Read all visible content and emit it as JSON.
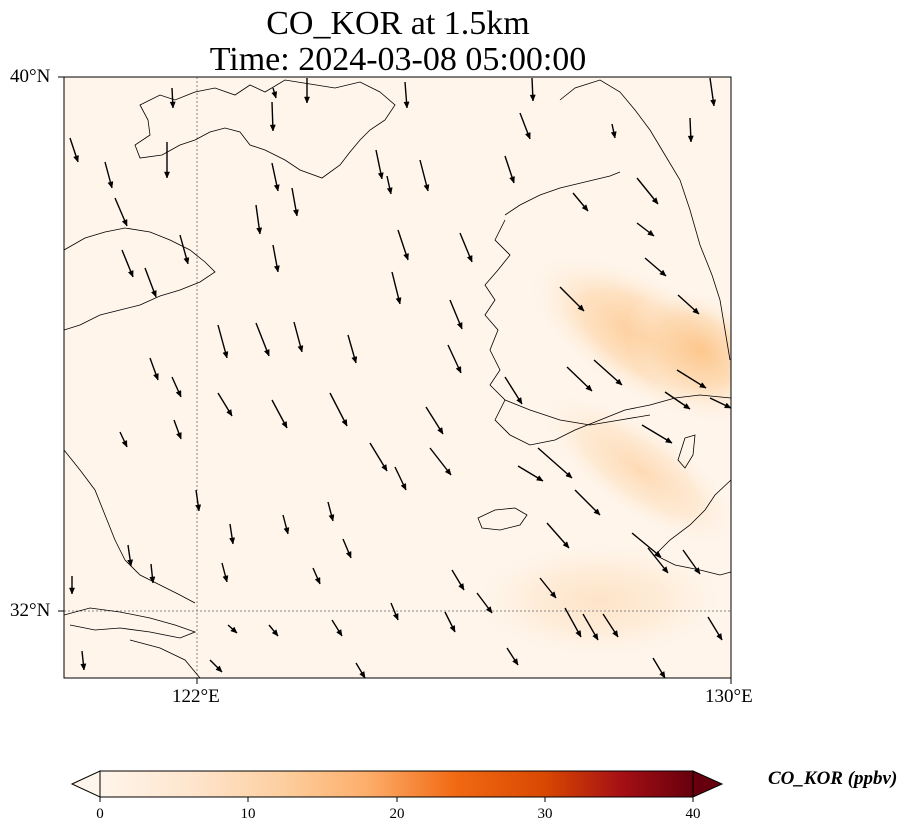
{
  "title": {
    "line1": "CO_KOR at 1.5km",
    "line2": "Time: 2024-03-08 05:00:00"
  },
  "map": {
    "lat_range": [
      31.0,
      40.0
    ],
    "lon_range": [
      120.0,
      130.0
    ],
    "lat_ticks": [
      "40°N",
      "32°N"
    ],
    "lon_ticks": [
      "122°E",
      "130°E"
    ],
    "gridlines": "dotted at 32°N and 122°E",
    "field": "CO concentration, higher values (light orange) over the Korean peninsula, near 128–130°E 35–37°N",
    "vectors": "wind arrows predominantly northerly / north-westerly"
  },
  "colorbar": {
    "label": "CO_KOR (ppbv)",
    "ticks": [
      "0",
      "10",
      "20",
      "30",
      "40"
    ],
    "range": [
      0,
      40
    ],
    "colormap": "Oranges to dark red",
    "colors": [
      "#fff5eb",
      "#fdd49e",
      "#fdae6b",
      "#f16913",
      "#d94801",
      "#a50f15",
      "#67000d"
    ]
  },
  "colors": {
    "background": "#fff5eb",
    "plume": "#fdc58a",
    "coast": "#000000",
    "grid": "#888888"
  }
}
